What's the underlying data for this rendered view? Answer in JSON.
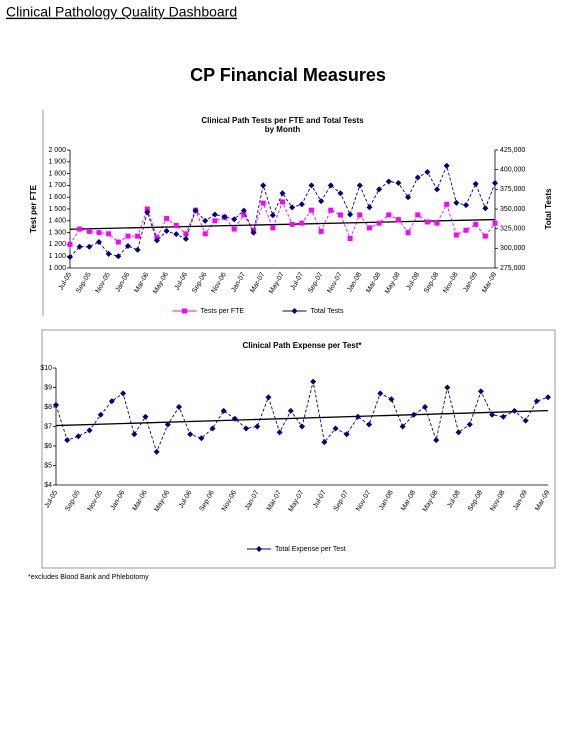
{
  "header": {
    "title": "Clinical Pathology Quality Dashboard",
    "heading": "CP Financial Measures"
  },
  "footnote": "*excludes Blood Bank and Phlebotomy",
  "chart_data": [
    {
      "type": "line",
      "title": "Clinical Path Tests per FTE and Total Tests",
      "subtitle": "by Month",
      "ylabel": "Test per FTE",
      "y2label": "Total Tests",
      "categories": [
        "Jul-05",
        null,
        "Sep-05",
        null,
        "Nov-05",
        null,
        "Jan-06",
        null,
        "Mar-06",
        null,
        "May-06",
        null,
        "Jul-06",
        null,
        "Sep-06",
        null,
        "Nov-06",
        null,
        "Jan-07",
        null,
        "Mar-07",
        null,
        "May-07",
        null,
        "Jul-07",
        null,
        "Sep-07",
        null,
        "Nov-07",
        null,
        "Jan-08",
        null,
        "Mar-08",
        null,
        "May-08",
        null,
        "Jul-08",
        null,
        "Sep-08",
        null,
        "Nov-08",
        null,
        "Jan-09",
        null,
        "Mar-09"
      ],
      "ylim": [
        1000,
        2000
      ],
      "yticks": [
        {
          "value": 1000,
          "label": "1 000"
        },
        {
          "value": 1100,
          "label": "1 100"
        },
        {
          "value": 1200,
          "label": "1 200"
        },
        {
          "value": 1300,
          "label": "1 300"
        },
        {
          "value": 1400,
          "label": "1 400"
        },
        {
          "value": 1500,
          "label": "1 500"
        },
        {
          "value": 1600,
          "label": "1 600"
        },
        {
          "value": 1700,
          "label": "1 700"
        },
        {
          "value": 1800,
          "label": "1 800"
        },
        {
          "value": 1900,
          "label": "1 900"
        },
        {
          "value": 2000,
          "label": "2 000"
        }
      ],
      "y2lim": [
        275000,
        425000
      ],
      "y2ticks": [
        {
          "value": 275000,
          "label": "275,000"
        },
        {
          "value": 300000,
          "label": "300,000"
        },
        {
          "value": 325000,
          "label": "325,000"
        },
        {
          "value": 350000,
          "label": "350,000"
        },
        {
          "value": 375000,
          "label": "375,000"
        },
        {
          "value": 400000,
          "label": "400,000"
        },
        {
          "value": 425000,
          "label": "425,000"
        }
      ],
      "grid": false,
      "legend": "bottom",
      "series": [
        {
          "name": "Tests per FTE",
          "color": "#ff00ff",
          "marker": "square",
          "trendline": true,
          "values": [
            1200,
            1330,
            1310,
            1300,
            1290,
            1220,
            1270,
            1270,
            1500,
            1260,
            1420,
            1360,
            1290,
            1490,
            1290,
            1400,
            1430,
            1330,
            1450,
            1320,
            1550,
            1340,
            1560,
            1370,
            1380,
            1490,
            1310,
            1490,
            1450,
            1250,
            1450,
            1340,
            1380,
            1450,
            1410,
            1300,
            1450,
            1390,
            1380,
            1540,
            1280,
            1320,
            1370,
            1270,
            1380
          ]
        },
        {
          "name": "Total Tests",
          "color": "#000080",
          "marker": "diamond",
          "axis": "y2",
          "trendline": false,
          "values": [
            289000,
            302000,
            302000,
            308000,
            293000,
            290000,
            303000,
            298000,
            346000,
            310000,
            322000,
            318000,
            312000,
            348000,
            335000,
            343000,
            340000,
            337000,
            348000,
            320000,
            380000,
            342000,
            370000,
            352000,
            356000,
            380000,
            360000,
            380000,
            370000,
            343000,
            380000,
            352000,
            375000,
            385000,
            383000,
            365000,
            390000,
            397000,
            375000,
            405000,
            358000,
            355000,
            382000,
            351000,
            383000
          ]
        }
      ]
    },
    {
      "type": "line",
      "title": "Clinical Path Expense per Test*",
      "categories": [
        "Jul-05",
        null,
        "Sep-05",
        null,
        "Nov-05",
        null,
        "Jan-06",
        null,
        "Mar-06",
        null,
        "May-06",
        null,
        "Jul-06",
        null,
        "Sep-06",
        null,
        "Nov-06",
        null,
        "Jan-07",
        null,
        "Mar-07",
        null,
        "May-07",
        null,
        "Jul-07",
        null,
        "Sep-07",
        null,
        "Nov-07",
        null,
        "Jan-08",
        null,
        "Mar-08",
        null,
        "May-08",
        null,
        "Jul-08",
        null,
        "Sep-08",
        null,
        "Nov-08",
        null,
        "Jan-09",
        null,
        "Mar-09"
      ],
      "ylim": [
        4,
        10
      ],
      "yticks": [
        {
          "value": 4,
          "label": "$4"
        },
        {
          "value": 5,
          "label": "$5"
        },
        {
          "value": 6,
          "label": "$6"
        },
        {
          "value": 7,
          "label": "$7"
        },
        {
          "value": 8,
          "label": "$8"
        },
        {
          "value": 9,
          "label": "$9"
        },
        {
          "value": 10,
          "label": "$10"
        }
      ],
      "grid": false,
      "legend": "bottom",
      "series": [
        {
          "name": "Total Expense per Test",
          "color": "#000080",
          "marker": "diamond",
          "trendline": true,
          "values": [
            8.1,
            6.3,
            6.5,
            6.8,
            7.6,
            8.3,
            8.7,
            6.6,
            7.5,
            5.7,
            7.1,
            8.0,
            6.6,
            6.4,
            6.9,
            7.8,
            7.4,
            6.9,
            7.0,
            8.5,
            6.7,
            7.8,
            7.0,
            9.3,
            6.2,
            6.9,
            6.6,
            7.5,
            7.1,
            8.7,
            8.4,
            7.0,
            7.6,
            8.0,
            6.3,
            9.0,
            6.7,
            7.1,
            8.8,
            7.6,
            7.5,
            7.8,
            7.3,
            8.3,
            8.5
          ]
        }
      ]
    }
  ]
}
